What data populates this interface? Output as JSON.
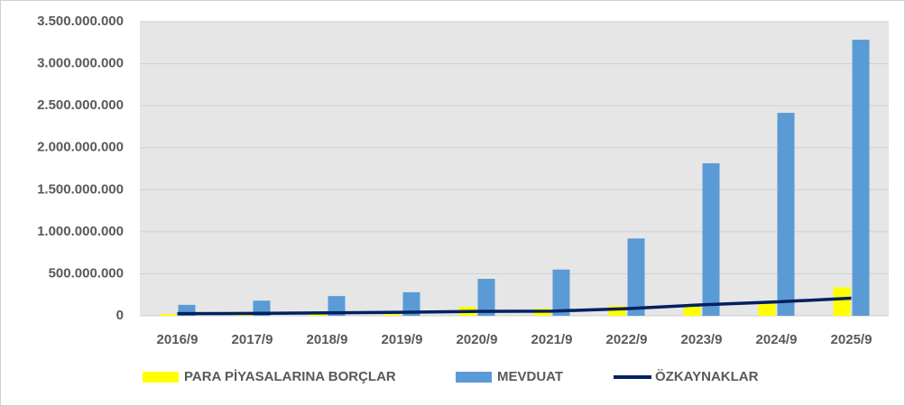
{
  "chart_data": {
    "type": "bar",
    "categories": [
      "2016/9",
      "2017/9",
      "2018/9",
      "2019/9",
      "2020/9",
      "2021/9",
      "2022/9",
      "2023/9",
      "2024/9",
      "2025/9"
    ],
    "series": [
      {
        "name": "PARA PİYASALARINA BORÇLAR",
        "color": "#ffff00",
        "values": [
          20000000,
          10000000,
          20000000,
          15000000,
          107000000,
          85000000,
          118000000,
          130000000,
          150000000,
          340000000
        ]
      },
      {
        "name": "MEVDUAT",
        "color": "#5b9bd5",
        "values": [
          130000000,
          180000000,
          235000000,
          280000000,
          440000000,
          550000000,
          920000000,
          1815000000,
          2415000000,
          3285000000
        ]
      },
      {
        "name": "ÖZKAYNAKLAR",
        "color": "#002060",
        "type": "line",
        "values": [
          25000000,
          28000000,
          35000000,
          42000000,
          52000000,
          55000000,
          85000000,
          130000000,
          165000000,
          210000000
        ]
      }
    ],
    "ylim": [
      0,
      3500000000
    ],
    "yticks": [
      0,
      {
        "value": 500000000,
        "label": "500.000.000"
      },
      {
        "value": 1000000000,
        "label": "1.000.000.000"
      },
      {
        "value": 1500000000,
        "label": "1.500.000.000"
      },
      {
        "value": 2000000000,
        "label": "2.000.000.000"
      },
      {
        "value": 2500000000,
        "label": "2.500.000.000"
      },
      {
        "value": 3000000000,
        "label": "3.000.000.000"
      },
      {
        "value": 3500000000,
        "label": "3.500.000.000"
      }
    ],
    "grid": true,
    "legend": "bottom"
  }
}
